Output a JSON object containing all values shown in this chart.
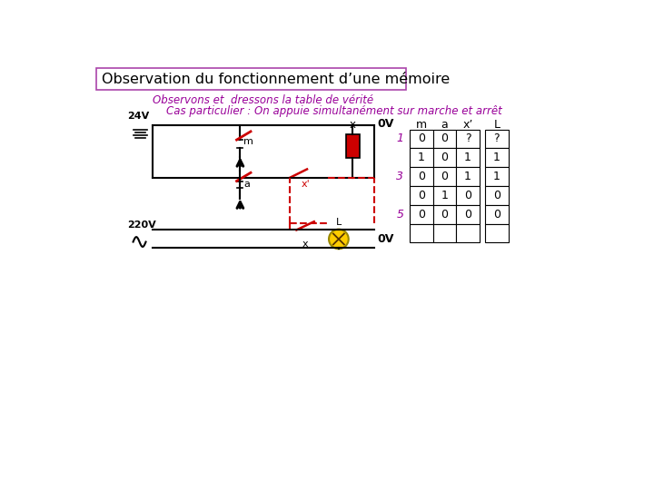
{
  "title": "Observation du fonctionnement d’une mémoire",
  "subtitle": "Observons et  dressons la table de vérité",
  "cas_particulier": "Cas particulier : On appuie simultanément sur marche et arrêt",
  "title_color": "#000000",
  "subtitle_color": "#990099",
  "cas_color": "#990099",
  "background_color": "#ffffff",
  "table_headers": [
    "m",
    "a",
    "x’",
    "L"
  ],
  "row_labels": [
    "1",
    "",
    "3",
    "",
    "5",
    ""
  ],
  "row_label_colors": [
    "#990099",
    "#000000",
    "#990099",
    "#000000",
    "#990099",
    "#000000"
  ],
  "table_data": [
    [
      "0",
      "0",
      "?",
      "?"
    ],
    [
      "1",
      "0",
      "1",
      "1"
    ],
    [
      "0",
      "0",
      "1",
      "1"
    ],
    [
      "0",
      "1",
      "0",
      "0"
    ],
    [
      "0",
      "0",
      "0",
      "0"
    ],
    [
      "",
      "",
      "",
      ""
    ]
  ]
}
